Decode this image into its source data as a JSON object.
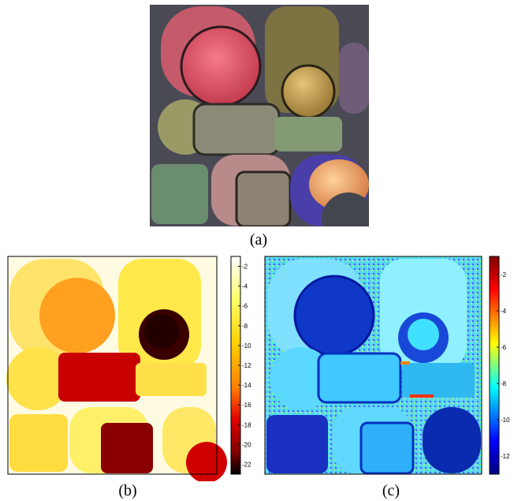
{
  "captions": {
    "a": "(a)",
    "b": "(b)",
    "c": "(c)"
  },
  "panels": {
    "a": {
      "kind": "photograph",
      "subject": "clay pieces"
    },
    "b": {
      "kind": "heatmap",
      "colormap": "hot"
    },
    "c": {
      "kind": "heatmap",
      "colormap": "jet"
    }
  },
  "chart_data": [
    {
      "type": "heatmap",
      "colorbar": {
        "ticks": [
          -2,
          -4,
          -6,
          -8,
          -10,
          -12,
          -14,
          -16,
          -18,
          -20,
          -22
        ],
        "range": [
          -23,
          -1
        ]
      },
      "colors": [
        "#ffffff",
        "#ffff66",
        "#ffd000",
        "#ff8000",
        "#e00000",
        "#800000",
        "#000000"
      ]
    },
    {
      "type": "heatmap",
      "colorbar": {
        "ticks": [
          -2,
          -4,
          -6,
          -8,
          -10,
          -12
        ],
        "range": [
          -13,
          -1
        ]
      },
      "colors": [
        "#800000",
        "#ff0000",
        "#ffff00",
        "#00ffff",
        "#0000ff",
        "#000080"
      ]
    }
  ]
}
